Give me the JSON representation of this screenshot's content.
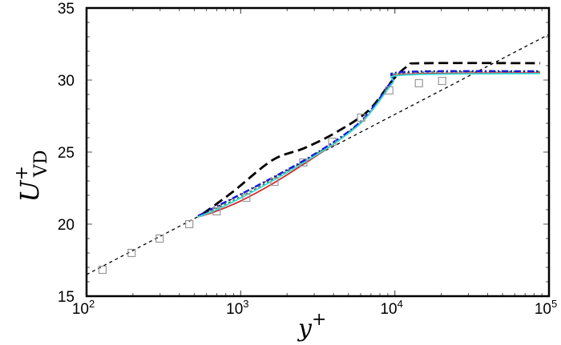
{
  "chart_data": {
    "type": "line",
    "title": "",
    "xlabel": "y+",
    "ylabel": "U+_VD",
    "xscale": "log",
    "xlim": [
      100,
      100000
    ],
    "ylim": [
      15,
      35
    ],
    "xticks": [
      100,
      1000,
      10000,
      100000
    ],
    "xtick_labels": [
      {
        "base": "10",
        "exp": "2"
      },
      {
        "base": "10",
        "exp": "3"
      },
      {
        "base": "10",
        "exp": "4"
      },
      {
        "base": "10",
        "exp": "5"
      }
    ],
    "yticks": [
      15,
      20,
      25,
      30,
      35
    ],
    "ytick_labels": [
      "15",
      "20",
      "25",
      "30",
      "35"
    ],
    "grid": false,
    "legend": null,
    "series": [
      {
        "name": "log-law reference",
        "style": "dotted",
        "color": "#000000",
        "x": [
          100,
          100000
        ],
        "y": [
          16.5,
          33.17
        ]
      },
      {
        "name": "black dashed",
        "style": "dashed",
        "color": "#000000",
        "x": [
          568,
          884,
          1607,
          2595,
          4188,
          6760,
          9685,
          12300,
          15630,
          87700
        ],
        "y": [
          20.72,
          22.22,
          24.44,
          25.28,
          26.39,
          27.89,
          30.0,
          31.0,
          31.17,
          31.17
        ]
      },
      {
        "name": "red solid",
        "style": "solid",
        "color": "#d62728",
        "x": [
          528,
          695,
          995,
          1607,
          2595,
          4188,
          6000,
          7625,
          9685,
          11590,
          87700
        ],
        "y": [
          20.5,
          20.9,
          21.6,
          22.8,
          24.2,
          25.7,
          27.0,
          28.3,
          29.8,
          30.4,
          30.5
        ]
      },
      {
        "name": "green dotted",
        "style": "dotted",
        "color": "#2e7d32",
        "x": [
          528,
          695,
          995,
          1607,
          2595,
          4188,
          6000,
          7625,
          9685,
          11590,
          87700
        ],
        "y": [
          20.5,
          21.1,
          21.9,
          23.1,
          24.4,
          25.8,
          27.1,
          28.4,
          29.9,
          30.5,
          30.6
        ]
      },
      {
        "name": "blue dash-dot",
        "style": "dashdot",
        "color": "#1a1ad6",
        "x": [
          528,
          695,
          995,
          1607,
          2595,
          4188,
          6000,
          7625,
          9685,
          11590,
          87700
        ],
        "y": [
          20.56,
          21.22,
          22.06,
          23.22,
          24.44,
          25.83,
          27.11,
          28.44,
          30.0,
          30.56,
          30.61
        ]
      },
      {
        "name": "cyan solid",
        "style": "solid",
        "color": "#33dddd",
        "x": [
          528,
          695,
          995,
          1607,
          2595,
          4188,
          6000,
          7625,
          9685,
          11590,
          87700
        ],
        "y": [
          20.5,
          21.0,
          21.8,
          23.0,
          24.3,
          25.7,
          27.0,
          28.3,
          29.8,
          30.35,
          30.45
        ]
      },
      {
        "name": "reference data (squares)",
        "style": "markers",
        "marker": "square-open",
        "color": "#999999",
        "x": [
          127,
          196,
          298,
          464,
          698,
          1087,
          1655,
          2548,
          3924,
          6042,
          9200,
          14330,
          20280
        ],
        "y": [
          16.83,
          18.0,
          19.0,
          20.0,
          20.89,
          21.83,
          22.94,
          24.28,
          25.72,
          27.39,
          29.28,
          29.78,
          29.94
        ]
      }
    ]
  },
  "labels": {
    "x_axis_main": "y",
    "x_axis_sup": "+",
    "y_axis_main": "U",
    "y_axis_sup": "+",
    "y_axis_sub": "VD"
  }
}
